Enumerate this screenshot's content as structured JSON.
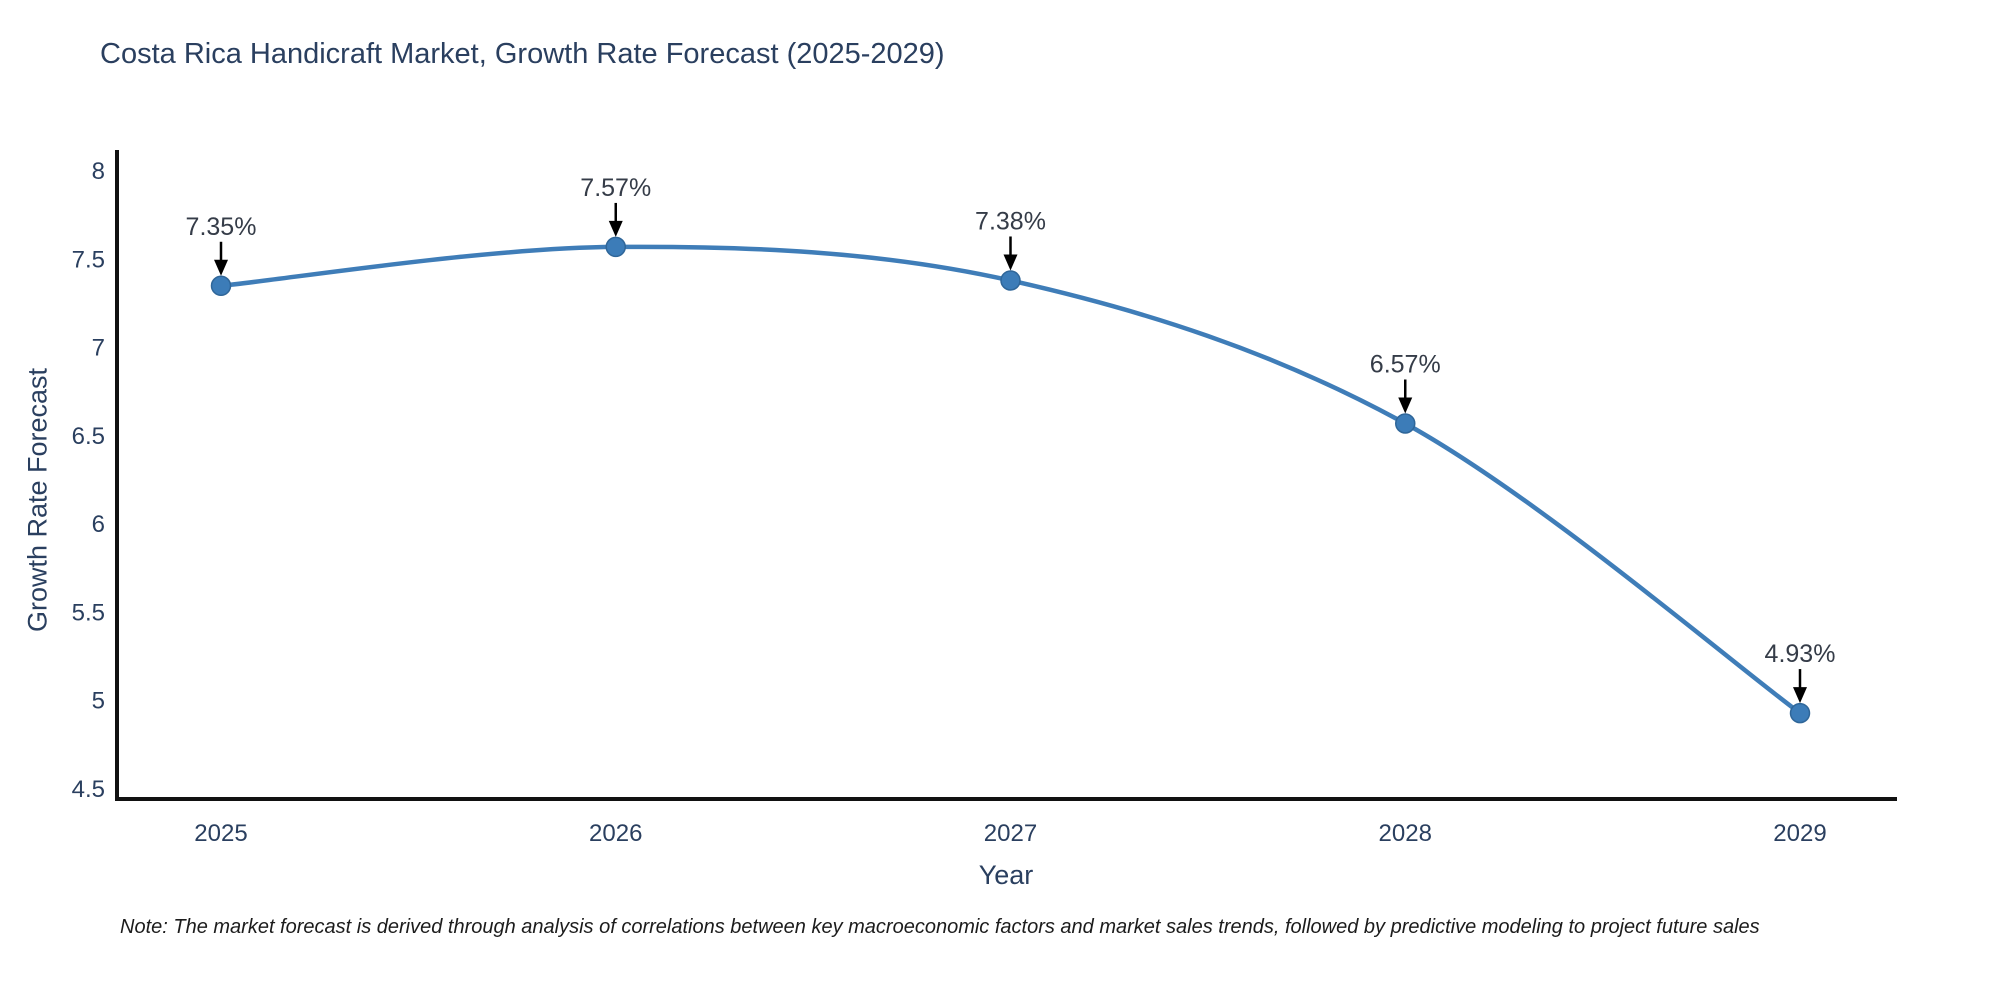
{
  "note": "Note: The market forecast is derived through analysis of correlations between key macroeconomic factors and market sales trends, followed by predictive modeling to project future sales",
  "chart_data": {
    "type": "line",
    "title": "Costa Rica Handicraft Market, Growth Rate Forecast (2025-2029)",
    "x": [
      2025,
      2026,
      2027,
      2028,
      2029
    ],
    "values": [
      7.35,
      7.57,
      7.38,
      6.57,
      4.93
    ],
    "point_labels": [
      "7.35%",
      "7.57%",
      "7.38%",
      "6.57%",
      "4.93%"
    ],
    "xlabel": "Year",
    "ylabel": "Growth Rate Forecast",
    "ylim": [
      4.5,
      8
    ],
    "yticks": [
      8,
      7.5,
      7,
      6.5,
      6,
      5.5,
      5,
      4.5
    ],
    "line_shape": "spline",
    "grid": false,
    "legend": "none",
    "colors": {
      "line": "#3f7db8",
      "marker_fill": "#3c7cb8",
      "marker_edge": "#2f6699",
      "axis_line": "#111111",
      "tick_text": "#2a3f5f",
      "annotation_text": "#353c48",
      "arrow": "#000000"
    }
  }
}
